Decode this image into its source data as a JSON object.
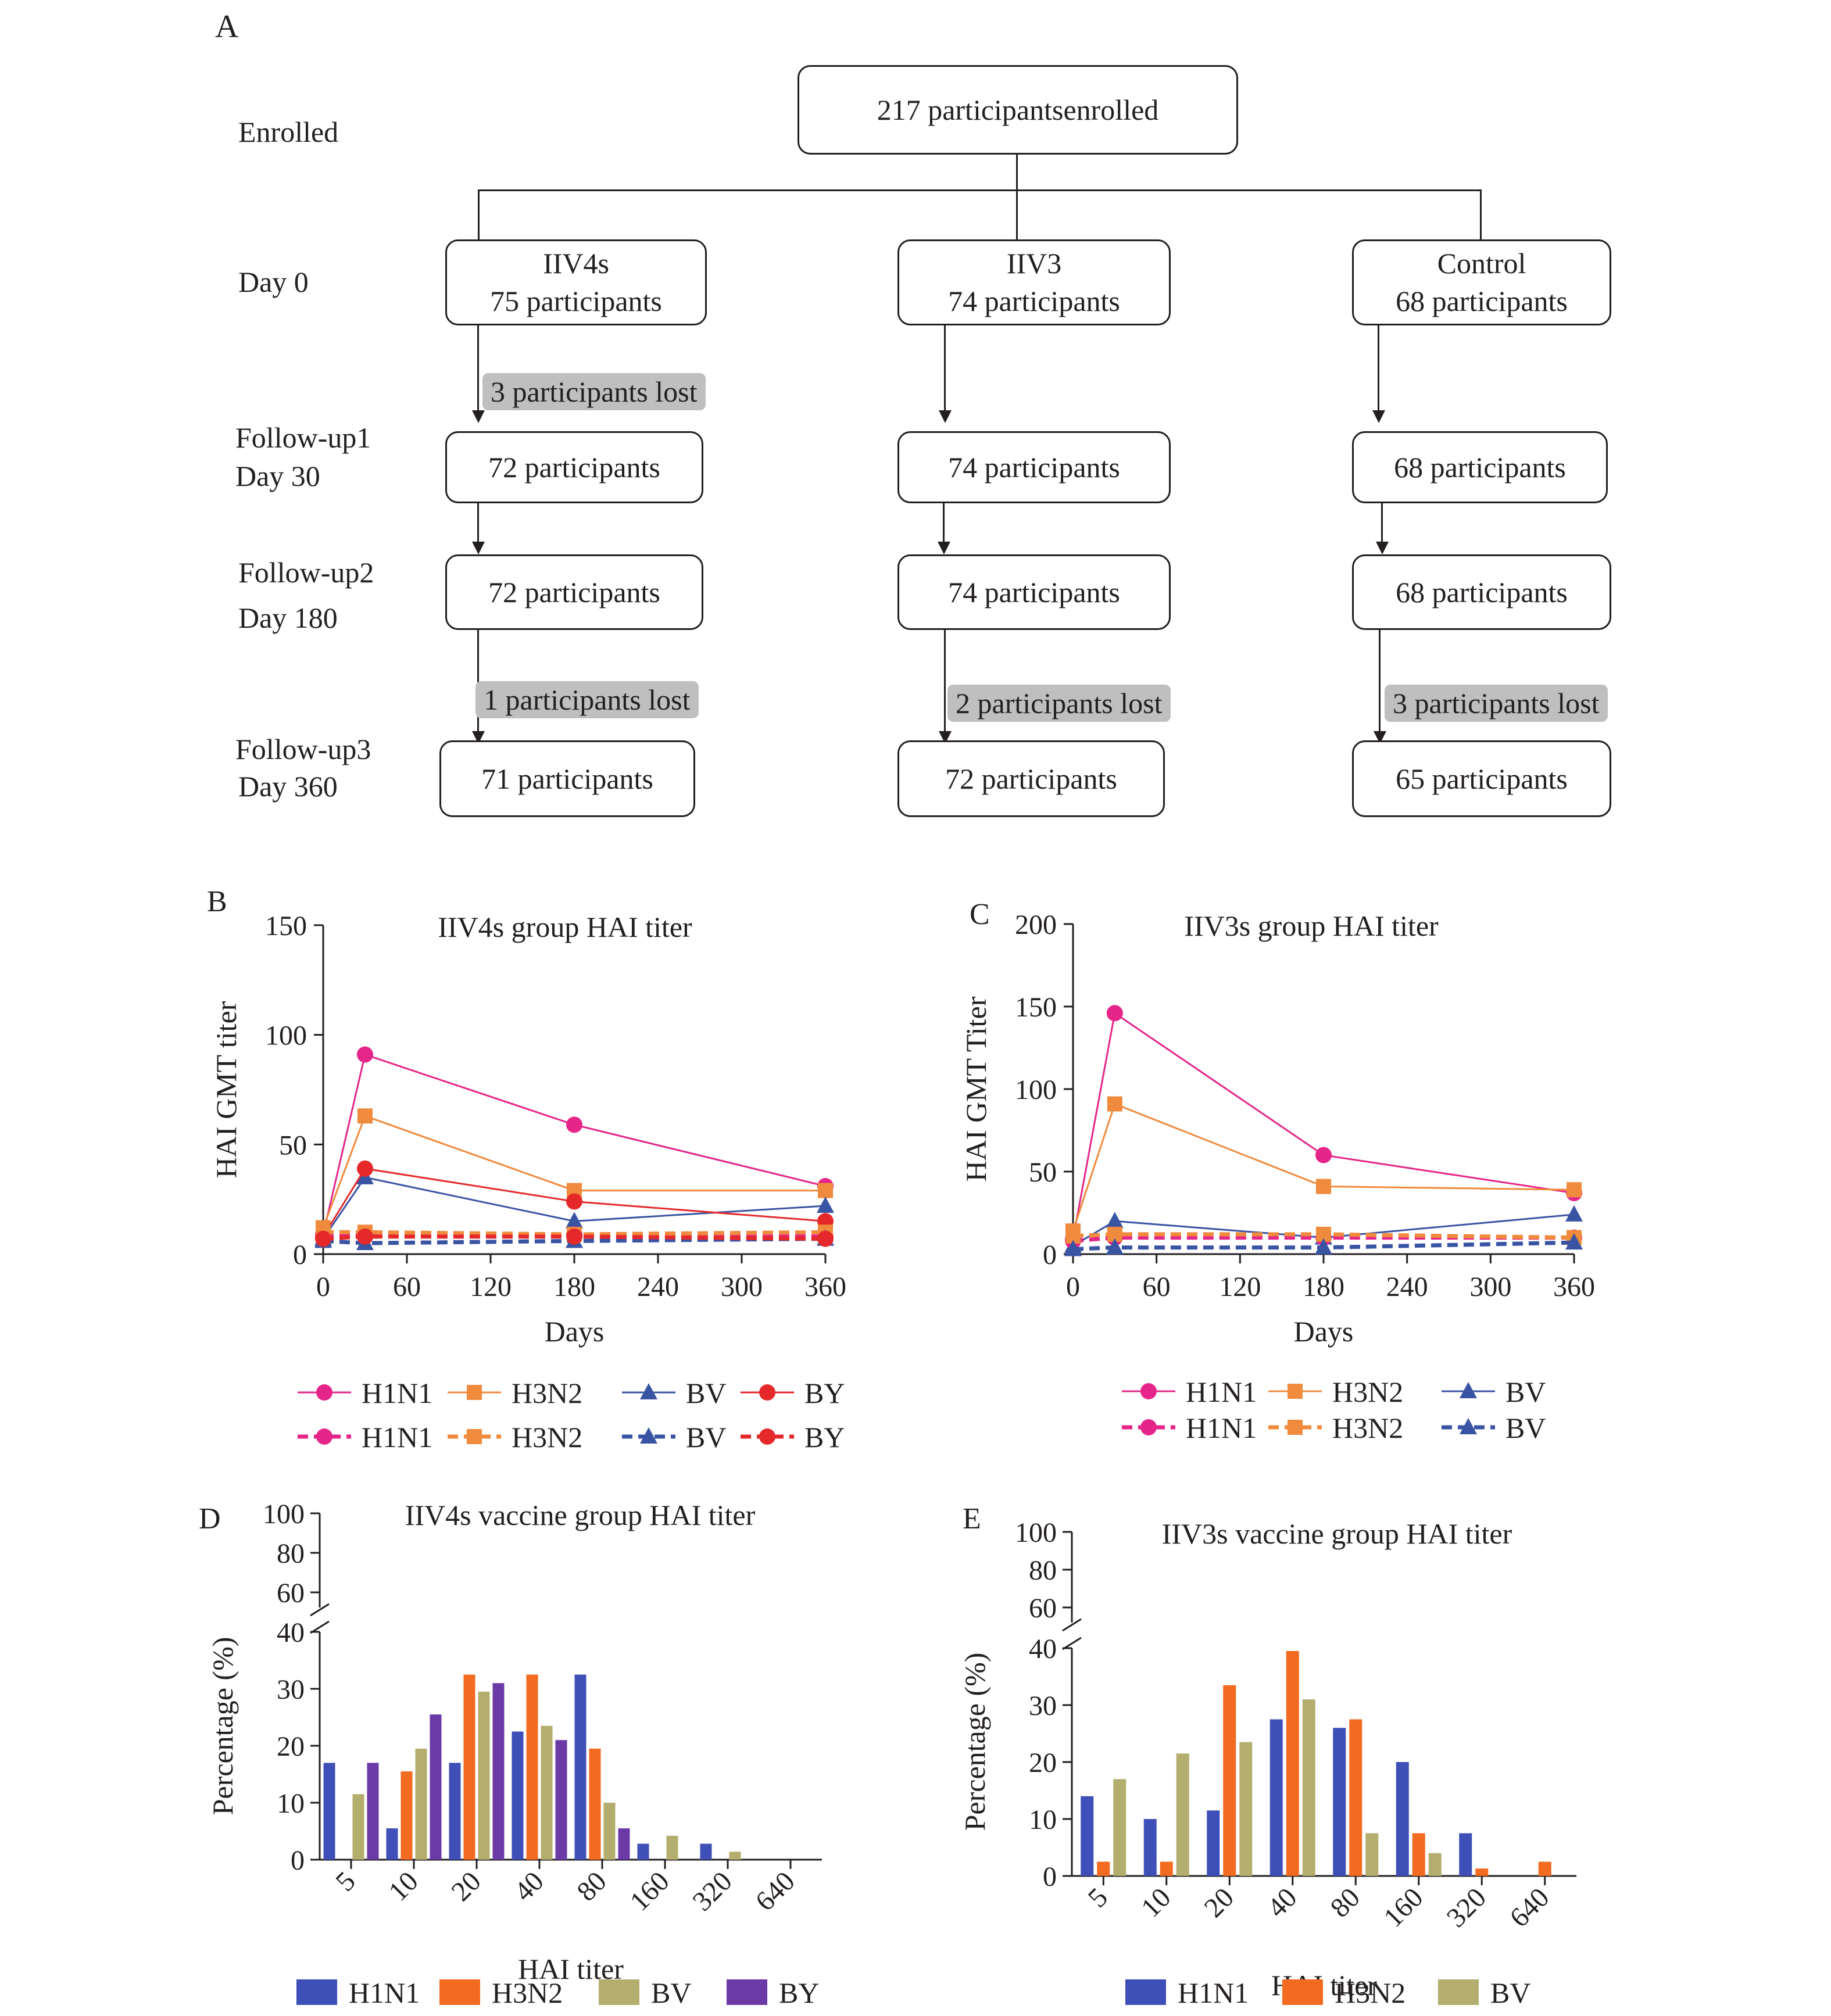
{
  "panel_a": {
    "label": "A",
    "stages": [
      "Enrolled",
      "Day 0",
      "Follow-up1",
      "Day 30",
      "Follow-up2",
      "Day 180",
      "Follow-up3",
      "Day 360"
    ],
    "enrolled_box": "217 participantsenrolled",
    "groups": [
      {
        "name": "IIV4s",
        "day0": "75 participants",
        "fu1": "72 participants",
        "fu2": "72 participants",
        "fu3": "71 participants",
        "lost1": "3 participants lost",
        "lost3": "1 participants lost"
      },
      {
        "name": "IIV3",
        "day0": "74 participants",
        "fu1": "74 participants",
        "fu2": "74 participants",
        "fu3": "72 participants",
        "lost1": "",
        "lost3": "2  participants lost"
      },
      {
        "name": "Control",
        "day0": "68 participants",
        "fu1": "68 participants",
        "fu2": "68 participants",
        "fu3": "65 participants",
        "lost1": "",
        "lost3": "3 participants lost"
      }
    ]
  },
  "colors": {
    "H1N1": "#e5258a",
    "H3N2": "#f08a3c",
    "BV": "#3a54a4",
    "BY": "#e5292b",
    "bar_H1N1": "#3f4fb8",
    "bar_H3N2": "#f26b21",
    "bar_BV": "#b3ad6e",
    "bar_BY": "#6b3aa7"
  },
  "chart_data": [
    {
      "panel": "B",
      "type": "line",
      "title": "IIV4s group HAI  titer",
      "xlabel": "Days",
      "ylabel": "HAI GMT titer",
      "xlim": [
        0,
        360
      ],
      "ylim": [
        0,
        150
      ],
      "xticks": [
        "0",
        "60",
        "120",
        "180",
        "240",
        "300",
        "360"
      ],
      "yticks": [
        "0",
        "50",
        "100",
        "150"
      ],
      "x": [
        0,
        30,
        180,
        360
      ],
      "series": [
        {
          "name": "H1N1",
          "style": "solid",
          "marker": "circle",
          "color": "H1N1",
          "values": [
            9,
            91,
            59,
            31
          ]
        },
        {
          "name": "H3N2",
          "style": "solid",
          "marker": "square",
          "color": "H3N2",
          "values": [
            12,
            63,
            29,
            29
          ]
        },
        {
          "name": "BV",
          "style": "solid",
          "marker": "triangle",
          "color": "BV",
          "values": [
            7,
            35,
            15,
            22
          ]
        },
        {
          "name": "BY",
          "style": "solid",
          "marker": "circle",
          "color": "BY",
          "values": [
            8,
            39,
            24,
            15
          ]
        },
        {
          "name": "H1N1",
          "style": "dashed",
          "marker": "circle",
          "color": "H1N1",
          "values": [
            8,
            9,
            9,
            8
          ]
        },
        {
          "name": "H3N2",
          "style": "dashed",
          "marker": "square",
          "color": "H3N2",
          "values": [
            10,
            10,
            9,
            10
          ]
        },
        {
          "name": "BV",
          "style": "dashed",
          "marker": "triangle",
          "color": "BV",
          "values": [
            6,
            5,
            6,
            7
          ]
        },
        {
          "name": "BY",
          "style": "dashed",
          "marker": "circle",
          "color": "BY",
          "values": [
            7,
            8,
            8,
            7
          ]
        }
      ],
      "legend": [
        [
          "H1N1",
          "H3N2",
          "BV",
          "BY"
        ],
        [
          "H1N1",
          "H3N2",
          "BV",
          "BY"
        ]
      ]
    },
    {
      "panel": "C",
      "type": "line",
      "title": "IIV3s group HAI titer",
      "xlabel": "Days",
      "ylabel": "HAI GMT Titer",
      "xlim": [
        0,
        360
      ],
      "ylim": [
        0,
        200
      ],
      "xticks": [
        "0",
        "60",
        "120",
        "180",
        "240",
        "300",
        "360"
      ],
      "yticks": [
        "0",
        "50",
        "100",
        "150",
        "200"
      ],
      "x": [
        0,
        30,
        180,
        360
      ],
      "series": [
        {
          "name": "H1N1",
          "style": "solid",
          "marker": "circle",
          "color": "H1N1",
          "values": [
            9,
            146,
            60,
            37
          ]
        },
        {
          "name": "H3N2",
          "style": "solid",
          "marker": "square",
          "color": "H3N2",
          "values": [
            14,
            91,
            41,
            39
          ]
        },
        {
          "name": "BV",
          "style": "solid",
          "marker": "triangle",
          "color": "BV",
          "values": [
            5,
            20,
            10,
            24
          ]
        },
        {
          "name": "H1N1",
          "style": "dashed",
          "marker": "circle",
          "color": "H1N1",
          "values": [
            8,
            10,
            10,
            10
          ]
        },
        {
          "name": "H3N2",
          "style": "dashed",
          "marker": "square",
          "color": "H3N2",
          "values": [
            11,
            12,
            12,
            10
          ]
        },
        {
          "name": "BV",
          "style": "dashed",
          "marker": "triangle",
          "color": "BV",
          "values": [
            3,
            4,
            4,
            7
          ]
        }
      ],
      "legend": [
        [
          "H1N1",
          "H3N2",
          "BV"
        ],
        [
          "H1N1",
          "H3N2",
          "BV"
        ]
      ]
    },
    {
      "panel": "D",
      "type": "bar",
      "title": "IIV4s vaccine group HAI titer",
      "xlabel": "HAI titer",
      "ylabel": "Percentage (%)",
      "categories": [
        "5",
        "10",
        "20",
        "40",
        "80",
        "160",
        "320",
        "640"
      ],
      "yticks_low": [
        "0",
        "10",
        "20",
        "30",
        "40"
      ],
      "yticks_high": [
        "60",
        "80",
        "100"
      ],
      "ylim_low": [
        0,
        40
      ],
      "ylim_high": [
        50,
        100
      ],
      "series": [
        {
          "name": "H1N1",
          "color": "bar_H1N1",
          "values": [
            17,
            5.5,
            17,
            22.5,
            32.5,
            2.8,
            2.8,
            0
          ]
        },
        {
          "name": "H3N2",
          "color": "bar_H3N2",
          "values": [
            0,
            15.5,
            32.5,
            32.5,
            19.5,
            0,
            0,
            0
          ]
        },
        {
          "name": "BV",
          "color": "bar_BV",
          "values": [
            11.5,
            19.5,
            29.5,
            23.5,
            10,
            4.2,
            1.4,
            0
          ]
        },
        {
          "name": "BY",
          "color": "bar_BY",
          "values": [
            17,
            25.5,
            31,
            21,
            5.5,
            0,
            0,
            0
          ]
        }
      ]
    },
    {
      "panel": "E",
      "type": "bar",
      "title": "IIV3s vaccine group HAI titer",
      "xlabel": "HAI titer",
      "ylabel": "Percentage (%)",
      "categories": [
        "5",
        "10",
        "20",
        "40",
        "80",
        "160",
        "320",
        "640"
      ],
      "yticks_low": [
        "0",
        "10",
        "20",
        "30",
        "40"
      ],
      "yticks_high": [
        "60",
        "80",
        "100"
      ],
      "ylim_low": [
        0,
        40
      ],
      "ylim_high": [
        50,
        100
      ],
      "series": [
        {
          "name": "H1N1",
          "color": "bar_H1N1",
          "values": [
            14,
            10,
            11.5,
            27.5,
            26,
            20,
            7.5,
            0
          ]
        },
        {
          "name": "H3N2",
          "color": "bar_H3N2",
          "values": [
            2.5,
            2.5,
            33.5,
            39.5,
            27.5,
            7.5,
            1.3,
            2.5
          ]
        },
        {
          "name": "BV",
          "color": "bar_BV",
          "values": [
            17,
            21.5,
            23.5,
            31,
            7.5,
            4,
            0,
            0
          ]
        }
      ]
    }
  ]
}
